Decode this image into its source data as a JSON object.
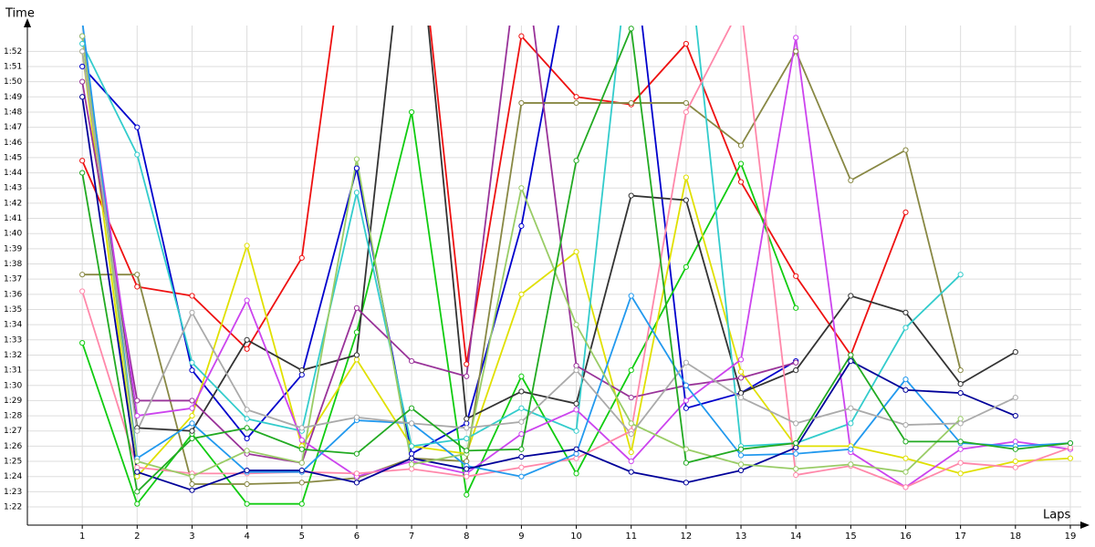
{
  "chart_data": {
    "type": "line",
    "y_label": "Time",
    "x_label": "Laps",
    "x": [
      1,
      2,
      3,
      4,
      5,
      6,
      7,
      8,
      9,
      10,
      11,
      12,
      13,
      14,
      15,
      16,
      17,
      18,
      19
    ],
    "xlim": [
      0,
      19.2
    ],
    "xticks": [
      1,
      2,
      3,
      4,
      5,
      6,
      7,
      8,
      9,
      10,
      11,
      12,
      13,
      14,
      15,
      16,
      17,
      18,
      19
    ],
    "ylim": [
      80.8,
      113.7
    ],
    "yticks": [
      {
        "value": 82,
        "label": "1:22"
      },
      {
        "value": 83,
        "label": "1:23"
      },
      {
        "value": 84,
        "label": "1:24"
      },
      {
        "value": 85,
        "label": "1:25"
      },
      {
        "value": 86,
        "label": "1:26"
      },
      {
        "value": 87,
        "label": "1:27"
      },
      {
        "value": 88,
        "label": "1:28"
      },
      {
        "value": 89,
        "label": "1:29"
      },
      {
        "value": 90,
        "label": "1:30"
      },
      {
        "value": 91,
        "label": "1:31"
      },
      {
        "value": 92,
        "label": "1:32"
      },
      {
        "value": 93,
        "label": "1:33"
      },
      {
        "value": 94,
        "label": "1:34"
      },
      {
        "value": 95,
        "label": "1:35"
      },
      {
        "value": 96,
        "label": "1:36"
      },
      {
        "value": 97,
        "label": "1:37"
      },
      {
        "value": 98,
        "label": "1:38"
      },
      {
        "value": 99,
        "label": "1:39"
      },
      {
        "value": 100,
        "label": "1:40"
      },
      {
        "value": 101,
        "label": "1:41"
      },
      {
        "value": 102,
        "label": "1:42"
      },
      {
        "value": 103,
        "label": "1:43"
      },
      {
        "value": 104,
        "label": "1:44"
      },
      {
        "value": 105,
        "label": "1:45"
      },
      {
        "value": 106,
        "label": "1:46"
      },
      {
        "value": 107,
        "label": "1:47"
      },
      {
        "value": 108,
        "label": "1:48"
      },
      {
        "value": 109,
        "label": "1:49"
      },
      {
        "value": 110,
        "label": "1:50"
      },
      {
        "value": 111,
        "label": "1:51"
      },
      {
        "value": 112,
        "label": "1:52"
      }
    ],
    "grid": true,
    "series": [
      {
        "color": "#ee1111",
        "values": [
          104.8,
          96.5,
          95.9,
          92.4,
          98.4,
          125,
          125,
          91.4,
          113,
          109,
          108.5,
          112.5,
          103.4,
          97.2,
          92,
          101.4,
          null,
          null,
          null
        ]
      },
      {
        "color": "#0000cc",
        "values": [
          111,
          107,
          91,
          86.5,
          90.7,
          104.3,
          85.5,
          87.5,
          100.5,
          120,
          120,
          88.5,
          89.5,
          91.6,
          null,
          null,
          null,
          null,
          null
        ]
      },
      {
        "color": "#11cc11",
        "values": [
          92.8,
          82.2,
          86.8,
          82.2,
          82.2,
          93.5,
          108,
          82.8,
          90.6,
          84.2,
          91,
          97.8,
          104.6,
          95.1,
          null,
          null,
          null,
          null,
          null
        ]
      },
      {
        "color": "#e0e000",
        "values": [
          112,
          84,
          88,
          99.2,
          86,
          91.7,
          86,
          85.5,
          96,
          98.8,
          85.6,
          103.7,
          90.9,
          86,
          86,
          85.2,
          84.2,
          85,
          85.2
        ]
      },
      {
        "color": "#888844",
        "values": [
          97.3,
          97.3,
          83.5,
          83.5,
          83.6,
          83.9,
          85.2,
          85,
          108.6,
          108.6,
          108.6,
          108.6,
          105.8,
          112,
          103.5,
          105.5,
          91,
          null,
          null
        ]
      },
      {
        "color": "#333333",
        "values": [
          113,
          87.2,
          87,
          93,
          91,
          92,
          125,
          87.8,
          89.6,
          88.8,
          102.5,
          102.2,
          89.5,
          91,
          95.9,
          94.8,
          90.1,
          92.2,
          null
        ]
      },
      {
        "color": "#33cccc",
        "values": [
          112.5,
          105.2,
          91.5,
          87.8,
          87,
          102.7,
          86,
          86.5,
          88.5,
          87,
          120,
          120,
          86,
          86.2,
          87.5,
          93.8,
          97.3,
          null,
          null
        ]
      },
      {
        "color": "#993399",
        "values": [
          110,
          89,
          89,
          85.5,
          84.9,
          95.1,
          91.6,
          90.6,
          120,
          91.3,
          89.2,
          90,
          90.5,
          91.5,
          null,
          null,
          null,
          null,
          null
        ]
      },
      {
        "color": "#cc44ee",
        "values": [
          113,
          88,
          88.5,
          95.6,
          86.4,
          84,
          85,
          84.2,
          86.8,
          88.4,
          85,
          89,
          91.7,
          112.9,
          85.6,
          83.3,
          85.8,
          86.3,
          85.8
        ]
      },
      {
        "color": "#ff88aa",
        "values": [
          96.2,
          84.6,
          84.2,
          84.2,
          84.3,
          84.2,
          84.5,
          84,
          84.6,
          85.2,
          87,
          108,
          115,
          84.1,
          84.7,
          83.3,
          84.9,
          84.6,
          85.9
        ]
      },
      {
        "color": "#2299ee",
        "values": [
          114,
          85.2,
          87.5,
          84.3,
          84.3,
          87.7,
          87.5,
          84.7,
          84,
          85.5,
          95.9,
          90,
          85.4,
          85.5,
          85.8,
          90.4,
          86.2,
          86,
          86.2
        ]
      },
      {
        "color": "#000099",
        "values": [
          109,
          84.3,
          83.1,
          84.4,
          84.4,
          83.6,
          85.2,
          84.5,
          85.3,
          85.8,
          84.3,
          83.6,
          84.4,
          85.9,
          91.6,
          89.7,
          89.5,
          88,
          null
        ]
      },
      {
        "color": "#99cc66",
        "values": [
          113,
          85,
          84,
          85.7,
          84.9,
          104.9,
          84.8,
          85.5,
          103,
          94,
          87.5,
          85.8,
          84.8,
          84.5,
          84.8,
          84.3,
          87.8,
          null,
          null
        ]
      },
      {
        "color": "#aaaaaa",
        "values": [
          112,
          87,
          94.8,
          88.4,
          87.2,
          87.9,
          87.5,
          87.2,
          87.6,
          91,
          86.8,
          91.5,
          89.2,
          87.5,
          88.5,
          87.4,
          87.5,
          89.2,
          null
        ]
      },
      {
        "color": "#22aa22",
        "values": [
          104,
          83,
          86.5,
          87.2,
          85.8,
          85.5,
          88.5,
          85.7,
          85.8,
          104.8,
          113.5,
          84.9,
          85.8,
          86.2,
          92,
          86.3,
          86.3,
          85.8,
          86.2
        ]
      }
    ]
  }
}
